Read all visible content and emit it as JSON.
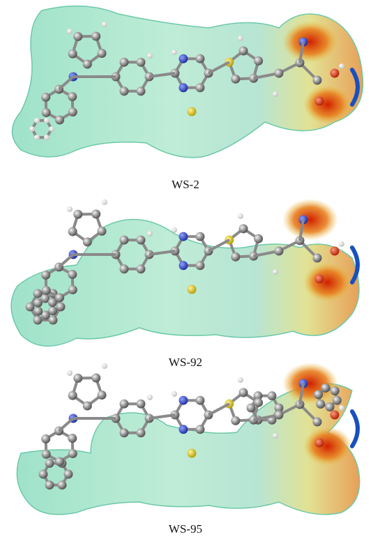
{
  "figures": [
    {
      "label": "WS-2"
    },
    {
      "label": "WS-92"
    },
    {
      "label": "WS-95"
    }
  ]
}
